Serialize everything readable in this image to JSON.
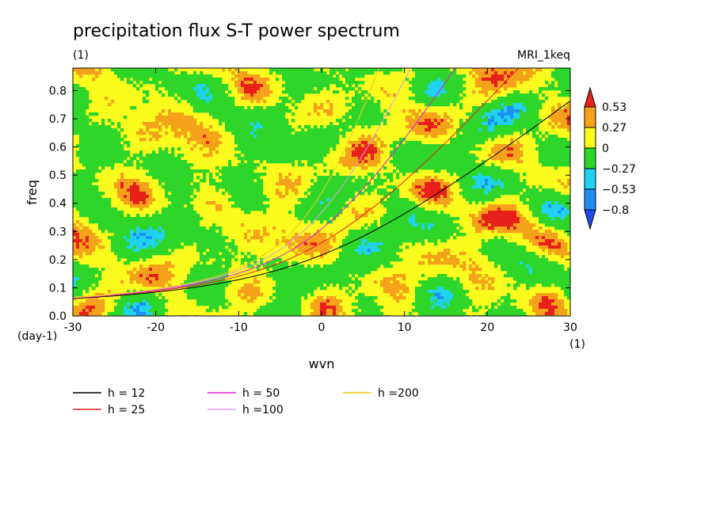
{
  "chart_data": {
    "type": "heatmap",
    "title": "precipitation flux S-T power spectrum",
    "subtitle_left": "(1)",
    "subtitle_right": "MRI_1keq",
    "xlabel": "wvn",
    "ylabel": "freq",
    "x_unit": "(1)",
    "y_unit": "(day-1)",
    "xlim": [
      -30,
      30
    ],
    "ylim": [
      0.0,
      0.88
    ],
    "x_ticks": [
      {
        "value": -30,
        "label": "-30"
      },
      {
        "value": -20,
        "label": "-20"
      },
      {
        "value": -10,
        "label": "-10"
      },
      {
        "value": 0,
        "label": "0"
      },
      {
        "value": 10,
        "label": "10"
      },
      {
        "value": 20,
        "label": "20"
      },
      {
        "value": 30,
        "label": "30"
      }
    ],
    "y_ticks": [
      {
        "value": 0.0,
        "label": "0.0"
      },
      {
        "value": 0.1,
        "label": "0.1"
      },
      {
        "value": 0.2,
        "label": "0.2"
      },
      {
        "value": 0.3,
        "label": "0.3"
      },
      {
        "value": 0.4,
        "label": "0.4"
      },
      {
        "value": 0.5,
        "label": "0.5"
      },
      {
        "value": 0.6,
        "label": "0.6"
      },
      {
        "value": 0.7,
        "label": "0.7"
      },
      {
        "value": 0.8,
        "label": "0.8"
      }
    ],
    "colorbar": {
      "levels": [
        "0.53",
        "0.27",
        "0",
        "−0.27",
        "−0.53",
        "−0.8"
      ],
      "colors": [
        "#e8201c",
        "#f5a21b",
        "#fbfb1e",
        "#2ed62a",
        "#1ed2f0",
        "#1e8ff5",
        "#1f4af0"
      ]
    },
    "series": [
      {
        "name": "h = 12",
        "h": 12,
        "color": "#000000"
      },
      {
        "name": "h = 25",
        "h": 25,
        "color": "#e8201c"
      },
      {
        "name": "h = 50",
        "h": 50,
        "color": "#e01ed8"
      },
      {
        "name": "h =100",
        "h": 100,
        "color": "#d8a0e8"
      },
      {
        "name": "h =200",
        "h": 200,
        "color": "#f0c81a"
      }
    ]
  }
}
